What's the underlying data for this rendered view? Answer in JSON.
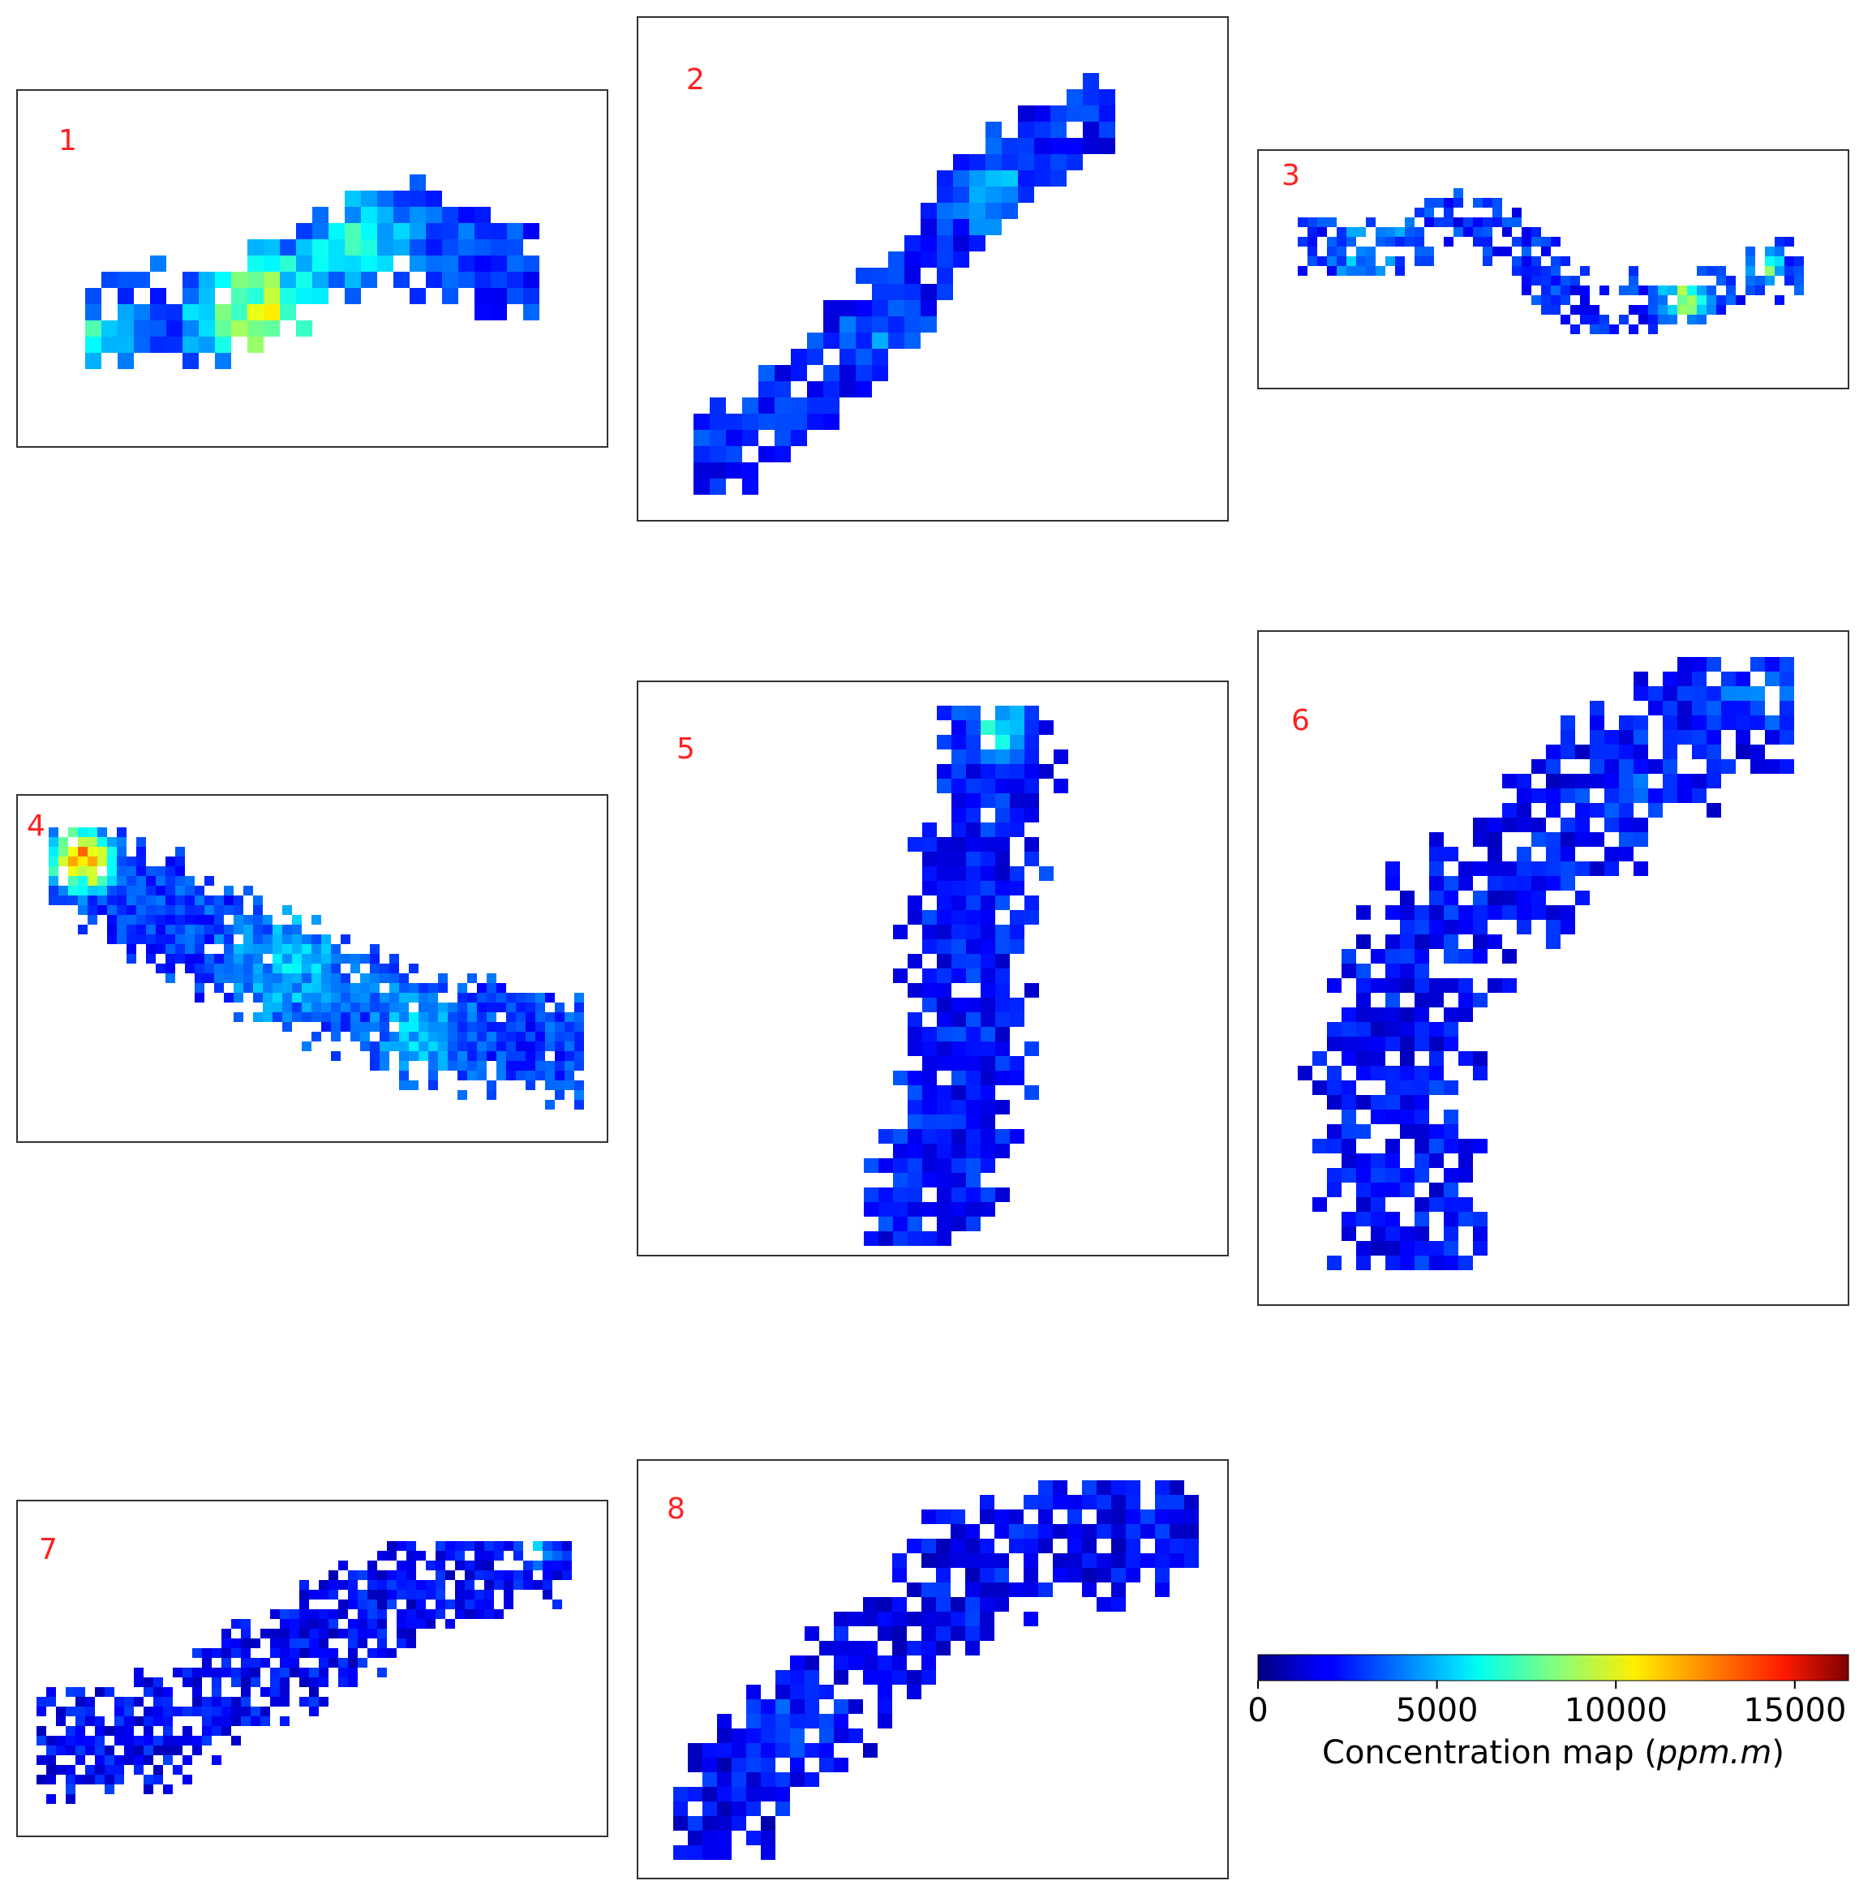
{
  "chart_data": {
    "type": "heatmap",
    "colormap": "jet",
    "value_range": [
      0,
      16500
    ],
    "panels": [
      {
        "label": "1",
        "shape": "horizontal elongated plume, hotspots yellow-green along lower-left tail",
        "max_value": 11000
      },
      {
        "label": "2",
        "shape": "diagonal plume rising to upper-right",
        "max_value": 5000
      },
      {
        "label": "3",
        "shape": "long wavy horizontal plume with yellow hotspot at right",
        "max_value": 11000
      },
      {
        "label": "4",
        "shape": "diagonal plume descending to lower-right, red source at upper-left",
        "max_value": 16000
      },
      {
        "label": "5",
        "shape": "vertical plume with cyan tip at top",
        "max_value": 6000
      },
      {
        "label": "6",
        "shape": "large diagonal sparse plume rising to upper-right",
        "max_value": 5000
      },
      {
        "label": "7",
        "shape": "sparse plume rising to upper-right with cyan tip",
        "max_value": 6000
      },
      {
        "label": "8",
        "shape": "broad sparse plume rising to upper-right",
        "max_value": 4500
      }
    ],
    "colorbar": {
      "ticks": [
        0,
        5000,
        10000,
        15000
      ],
      "tick_labels": [
        "0",
        "5000",
        "10000",
        "15000"
      ],
      "label_text": "Concentration map (",
      "label_italic": "ppm.m",
      "label_close": ")"
    }
  }
}
